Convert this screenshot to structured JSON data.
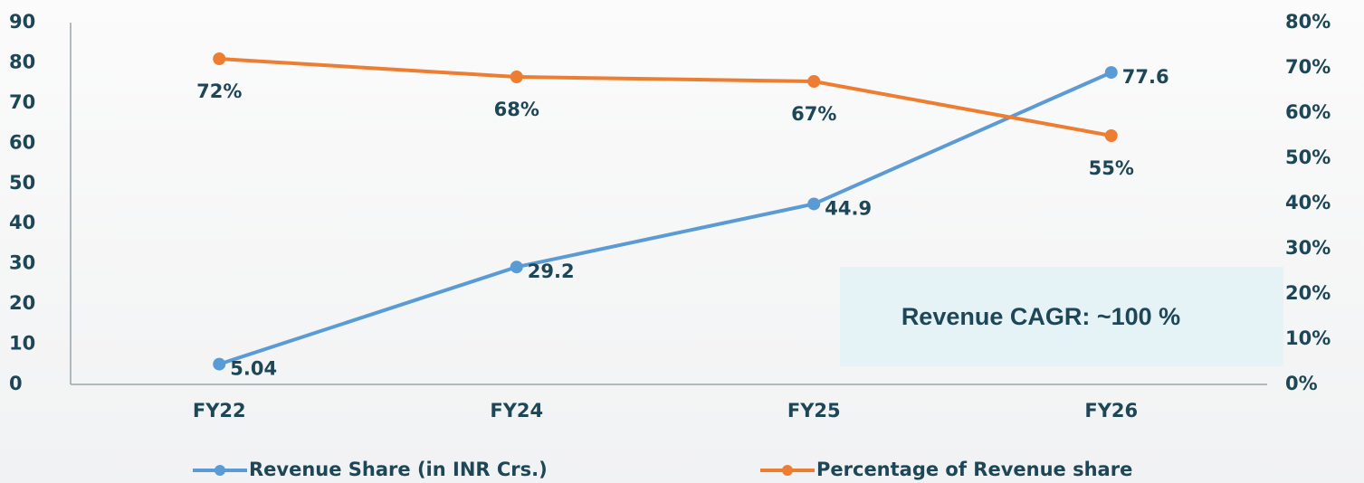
{
  "chart_data": {
    "type": "line",
    "categories": [
      "FY22",
      "FY24",
      "FY25",
      "FY26"
    ],
    "series": [
      {
        "name": "Revenue Share (in INR Crs.)",
        "color": "#5b9bd5",
        "values": [
          5.04,
          29.2,
          44.9,
          77.6
        ],
        "axis": "y"
      },
      {
        "name": "Percentage of Revenue share",
        "color": "#ed7d31",
        "values": [
          72,
          68,
          67,
          55
        ],
        "value_labels": [
          "72%",
          "68%",
          "67%",
          "55%"
        ],
        "axis": "y2"
      }
    ],
    "ylim": [
      0,
      90
    ],
    "yticks": [
      0,
      10,
      20,
      30,
      40,
      50,
      60,
      70,
      80,
      90
    ],
    "y2lim": [
      0,
      80
    ],
    "y2ticks": [
      {
        "value": 0,
        "label": "0%"
      },
      {
        "value": 10,
        "label": "10%"
      },
      {
        "value": 20,
        "label": "20%"
      },
      {
        "value": 30,
        "label": "30%"
      },
      {
        "value": 40,
        "label": "40%"
      },
      {
        "value": 50,
        "label": "50%"
      },
      {
        "value": 60,
        "label": "60%"
      },
      {
        "value": 70,
        "label": "70%"
      },
      {
        "value": 80,
        "label": "80%"
      }
    ],
    "annotation": "Revenue CAGR: ~100 %",
    "legend": "bottom"
  }
}
